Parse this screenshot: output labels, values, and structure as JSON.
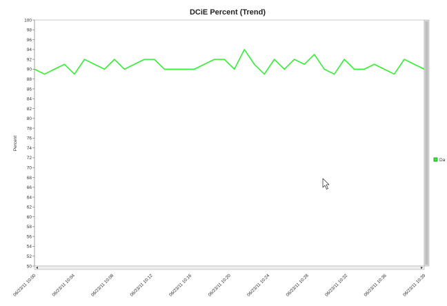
{
  "chart_data": {
    "type": "line",
    "title": "DCiE Percent (Trend)",
    "ylabel": "Percent",
    "xlabel": "",
    "ylim": [
      50,
      100
    ],
    "y_ticks": [
      50,
      52,
      54,
      56,
      58,
      60,
      62,
      64,
      66,
      68,
      70,
      72,
      74,
      76,
      78,
      80,
      82,
      84,
      86,
      88,
      90,
      92,
      94,
      96,
      98,
      100
    ],
    "x_tick_labels": [
      "06/23/11 10:00",
      "06/23/11 10:04",
      "06/23/11 10:08",
      "06/23/11 10:12",
      "06/23/11 10:16",
      "06/23/11 10:20",
      "06/23/11 10:24",
      "06/23/11 10:28",
      "06/23/11 10:32",
      "06/23/11 10:36",
      "06/23/11 10:39"
    ],
    "grid": false,
    "legend_position": "right",
    "series": [
      {
        "name": "Da",
        "color": "#33ee33",
        "x": [
          0,
          1,
          2,
          3,
          4,
          5,
          6,
          7,
          8,
          9,
          10,
          11,
          12,
          13,
          14,
          15,
          16,
          17,
          18,
          19,
          20,
          21,
          22,
          23,
          24,
          25,
          26,
          27,
          28,
          29,
          30,
          31,
          32,
          33,
          34,
          35,
          36,
          37,
          38,
          39
        ],
        "values": [
          90,
          89,
          90,
          91,
          89,
          92,
          91,
          90,
          92,
          90,
          91,
          92,
          92,
          90,
          90,
          90,
          90,
          91,
          92,
          92,
          90,
          94,
          91,
          89,
          92,
          90,
          92,
          91,
          93,
          90,
          89,
          92,
          90,
          90,
          91,
          90,
          89,
          92,
          91,
          90
        ]
      }
    ]
  }
}
